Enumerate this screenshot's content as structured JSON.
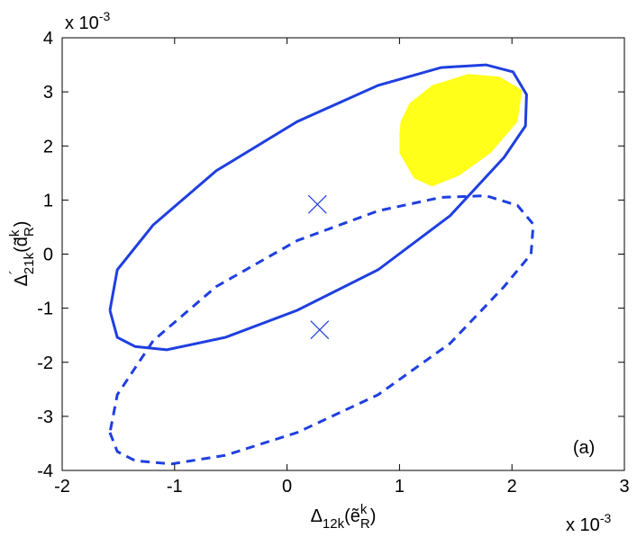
{
  "chart_data": {
    "type": "line",
    "xlim": [
      -2,
      3
    ],
    "ylim": [
      -4,
      4
    ],
    "xticks": [
      -2,
      -1,
      0,
      1,
      2,
      3
    ],
    "yticks": [
      -4,
      -3,
      -2,
      -1,
      0,
      1,
      2,
      3,
      4
    ],
    "grid": false,
    "xmultiplier": {
      "base": "x 10",
      "exponent": "-3"
    },
    "ymultiplier": {
      "base": "x 10",
      "exponent": "-3"
    },
    "xlabel": {
      "parts": [
        {
          "text": "Δ"
        },
        {
          "text": "12k",
          "shift": "sub"
        },
        {
          "text": "(ẽ"
        },
        {
          "text": "k",
          "shift": "super"
        },
        {
          "text": "R",
          "shift": "sub",
          "stack": true
        },
        {
          "text": ")"
        }
      ]
    },
    "ylabel": {
      "parts": [
        {
          "text": "Δ"
        },
        {
          "text": "´",
          "shift": "super"
        },
        {
          "text": "21k",
          "shift": "sub",
          "stack": true
        },
        {
          "text": "(d̃"
        },
        {
          "text": "k",
          "shift": "super"
        },
        {
          "text": "R",
          "shift": "sub",
          "stack": true
        },
        {
          "text": ")"
        }
      ]
    },
    "annotation": {
      "text": "(a)",
      "x": 2.64,
      "y": -3.57
    },
    "series": [
      {
        "type": "area",
        "color": "#ffff1a",
        "x": [
          1.01,
          1.09,
          1.29,
          1.61,
          1.89,
          2.09,
          2.05,
          1.81,
          1.53,
          1.29,
          1.13,
          1.0,
          1.0,
          1.01
        ],
        "y": [
          2.45,
          2.79,
          3.12,
          3.33,
          3.28,
          3.03,
          2.45,
          1.87,
          1.45,
          1.25,
          1.4,
          1.87,
          2.2,
          2.45
        ]
      },
      {
        "type": "line",
        "color": "#1f3fe0",
        "style": "solid",
        "x": [
          -1.575,
          -1.51,
          -1.35,
          -1.07,
          -0.55,
          0.09,
          0.81,
          1.45,
          1.93,
          2.12,
          2.13,
          2.01,
          1.77,
          1.37,
          0.81,
          0.09,
          -0.63,
          -1.19,
          -1.51,
          -1.575
        ],
        "y": [
          -1.04,
          -1.54,
          -1.71,
          -1.77,
          -1.54,
          -1.04,
          -0.29,
          0.71,
          1.79,
          2.37,
          2.95,
          3.37,
          3.5,
          3.45,
          3.12,
          2.45,
          1.54,
          0.54,
          -0.29,
          -1.04
        ]
      },
      {
        "type": "line",
        "color": "#1f3fe0",
        "style": "dashed",
        "x": [
          -1.575,
          -1.51,
          -1.35,
          -1.03,
          -0.55,
          0.09,
          0.81,
          1.45,
          1.93,
          2.17,
          2.19,
          2.05,
          1.77,
          1.37,
          0.81,
          0.09,
          -0.63,
          -1.19,
          -1.51,
          -1.575
        ],
        "y": [
          -3.3,
          -3.65,
          -3.82,
          -3.88,
          -3.72,
          -3.3,
          -2.6,
          -1.65,
          -0.6,
          0.0,
          0.55,
          0.9,
          1.08,
          1.05,
          0.8,
          0.25,
          -0.6,
          -1.6,
          -2.6,
          -3.3
        ]
      },
      {
        "type": "scatter",
        "color": "#1f3fe0",
        "marker": "x",
        "x": [
          0.27,
          0.29
        ],
        "y": [
          0.92,
          -1.4
        ]
      }
    ]
  }
}
